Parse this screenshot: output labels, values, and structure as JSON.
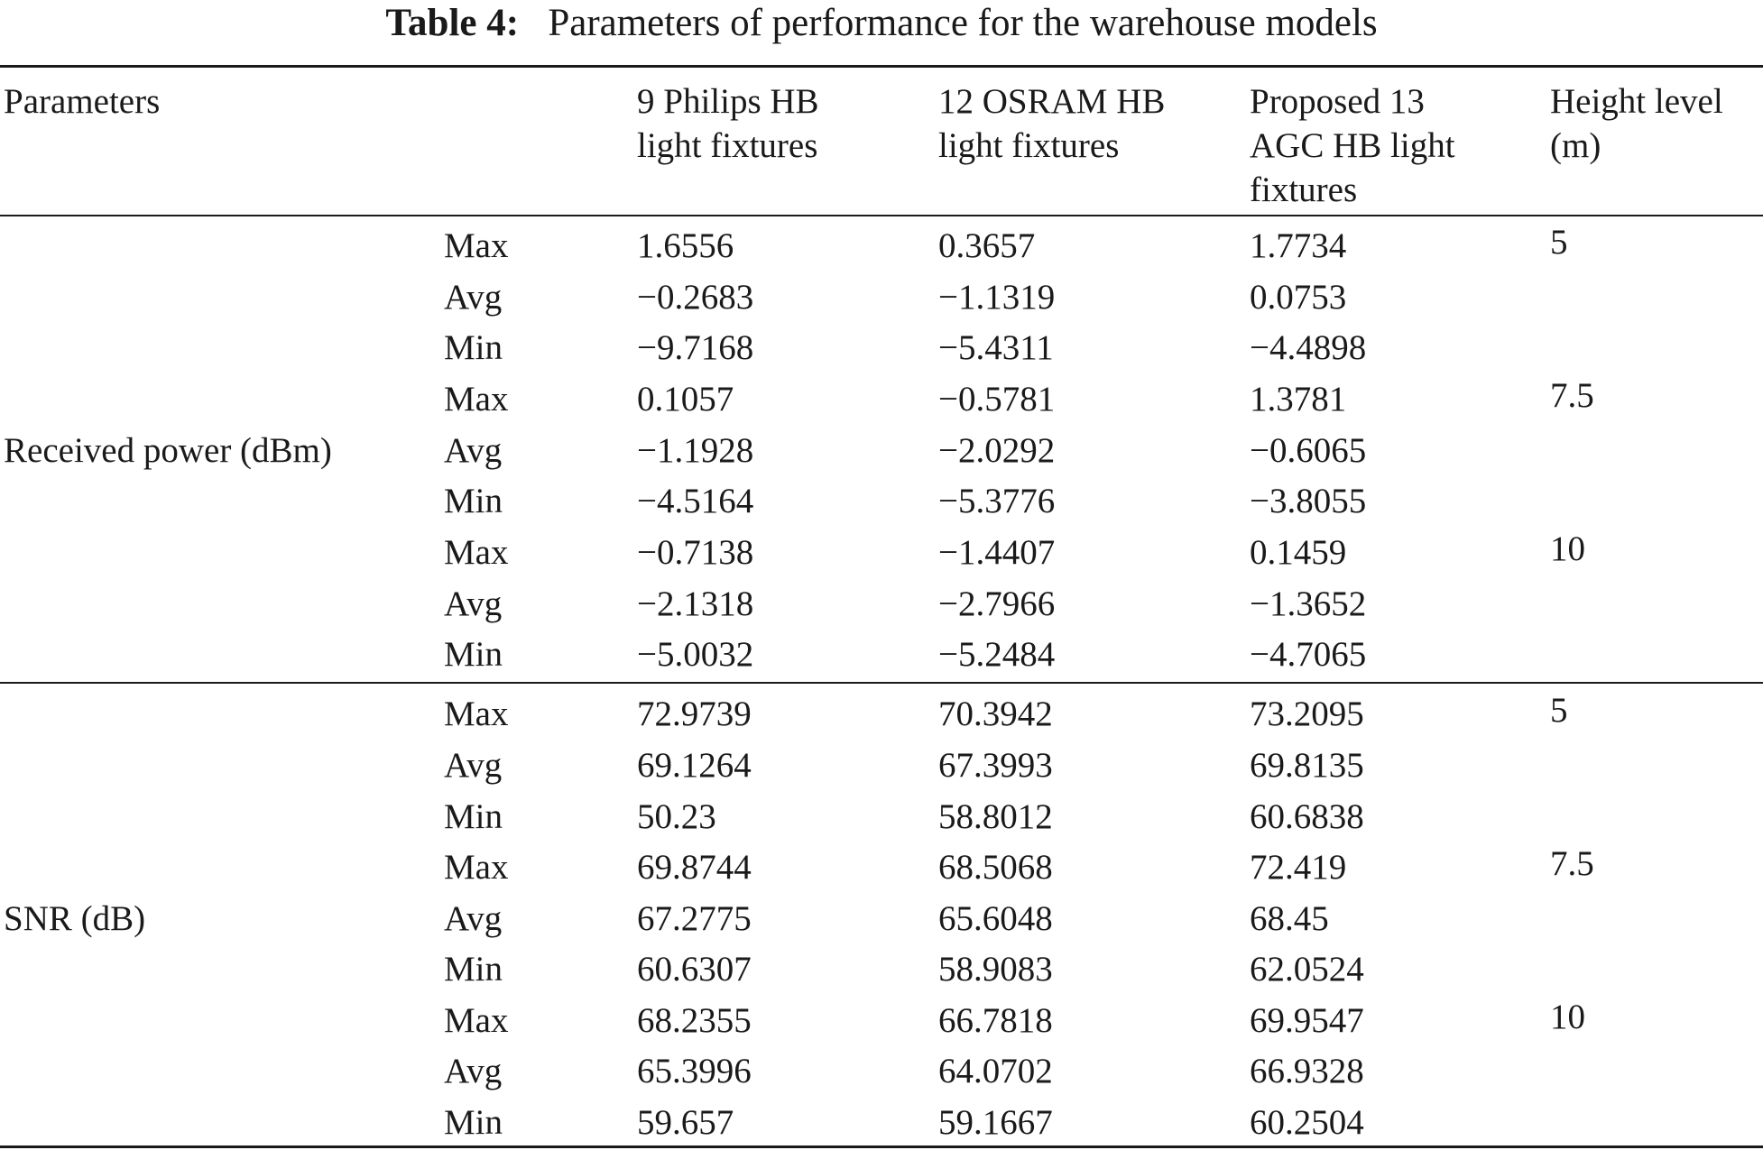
{
  "caption": {
    "label": "Table 4:",
    "text": "Parameters of performance for the warehouse models"
  },
  "columns": {
    "parameters": "Parameters",
    "philips": [
      "9 Philips HB",
      "light fixtures"
    ],
    "osram": [
      "12 OSRAM HB",
      "light fixtures"
    ],
    "agc": [
      "Proposed 13",
      "AGC HB light",
      "fixtures"
    ],
    "height": [
      "Height level",
      "(m)"
    ]
  },
  "groups": [
    {
      "name": "Received power (dBm)",
      "rows": [
        {
          "stat": "Max",
          "philips": "1.6556",
          "osram": "0.3657",
          "agc": "1.7734",
          "height": "5"
        },
        {
          "stat": "Avg",
          "philips": "−0.2683",
          "osram": "−1.1319",
          "agc": "0.0753",
          "height": ""
        },
        {
          "stat": "Min",
          "philips": "−9.7168",
          "osram": "−5.4311",
          "agc": "−4.4898",
          "height": ""
        },
        {
          "stat": "Max",
          "philips": "0.1057",
          "osram": "−0.5781",
          "agc": "1.3781",
          "height": "7.5"
        },
        {
          "stat": "Avg",
          "philips": "−1.1928",
          "osram": "−2.0292",
          "agc": "−0.6065",
          "height": ""
        },
        {
          "stat": "Min",
          "philips": "−4.5164",
          "osram": "−5.3776",
          "agc": "−3.8055",
          "height": ""
        },
        {
          "stat": "Max",
          "philips": "−0.7138",
          "osram": "−1.4407",
          "agc": "0.1459",
          "height": "10"
        },
        {
          "stat": "Avg",
          "philips": "−2.1318",
          "osram": "−2.7966",
          "agc": "−1.3652",
          "height": ""
        },
        {
          "stat": "Min",
          "philips": "−5.0032",
          "osram": "−5.2484",
          "agc": "−4.7065",
          "height": ""
        }
      ]
    },
    {
      "name": "SNR (dB)",
      "rows": [
        {
          "stat": "Max",
          "philips": "72.9739",
          "osram": "70.3942",
          "agc": "73.2095",
          "height": "5"
        },
        {
          "stat": "Avg",
          "philips": "69.1264",
          "osram": "67.3993",
          "agc": "69.8135",
          "height": ""
        },
        {
          "stat": "Min",
          "philips": "50.23",
          "osram": "58.8012",
          "agc": "60.6838",
          "height": ""
        },
        {
          "stat": "Max",
          "philips": "69.8744",
          "osram": "68.5068",
          "agc": "72.419",
          "height": "7.5"
        },
        {
          "stat": "Avg",
          "philips": "67.2775",
          "osram": "65.6048",
          "agc": "68.45",
          "height": ""
        },
        {
          "stat": "Min",
          "philips": "60.6307",
          "osram": "58.9083",
          "agc": "62.0524",
          "height": ""
        },
        {
          "stat": "Max",
          "philips": "68.2355",
          "osram": "66.7818",
          "agc": "69.9547",
          "height": "10"
        },
        {
          "stat": "Avg",
          "philips": "65.3996",
          "osram": "64.0702",
          "agc": "66.9328",
          "height": ""
        },
        {
          "stat": "Min",
          "philips": "59.657",
          "osram": "59.1667",
          "agc": "60.2504",
          "height": ""
        }
      ]
    }
  ]
}
